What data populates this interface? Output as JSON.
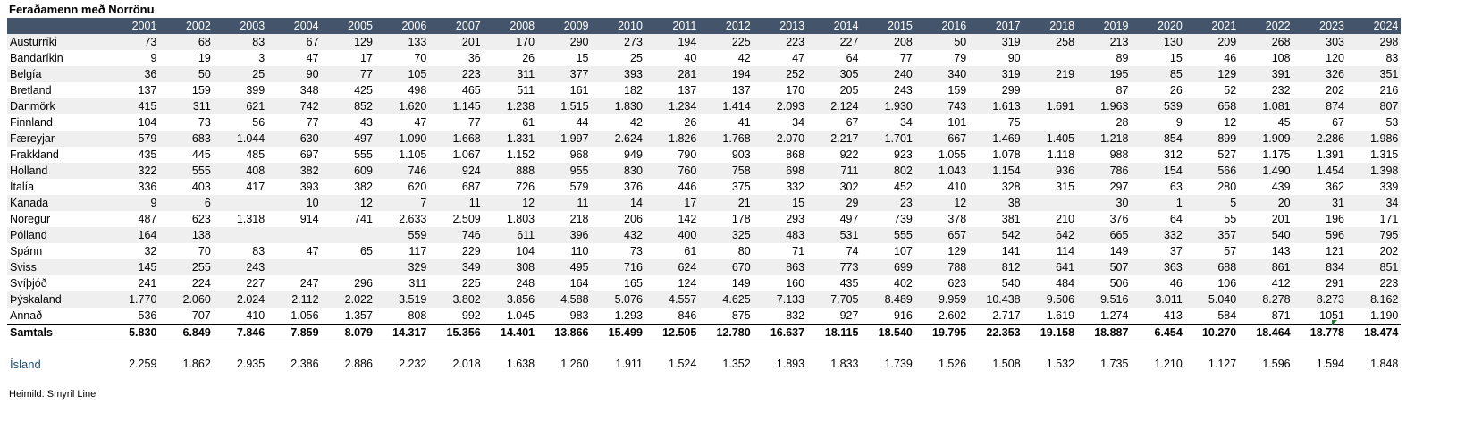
{
  "title": "Feraðamenn með Norrönu",
  "years": [
    "2001",
    "2002",
    "2003",
    "2004",
    "2005",
    "2006",
    "2007",
    "2008",
    "2009",
    "2010",
    "2011",
    "2012",
    "2013",
    "2014",
    "2015",
    "2016",
    "2017",
    "2018",
    "2019",
    "2020",
    "2021",
    "2022",
    "2023",
    "2024"
  ],
  "rows": [
    {
      "label": "Austurríki",
      "values": [
        "73",
        "68",
        "83",
        "67",
        "129",
        "133",
        "201",
        "170",
        "290",
        "273",
        "194",
        "225",
        "223",
        "227",
        "208",
        "50",
        "319",
        "258",
        "213",
        "130",
        "209",
        "268",
        "303",
        "298"
      ]
    },
    {
      "label": "Bandaríkin",
      "values": [
        "9",
        "19",
        "3",
        "47",
        "17",
        "70",
        "36",
        "26",
        "15",
        "25",
        "40",
        "42",
        "47",
        "64",
        "77",
        "79",
        "90",
        "",
        "89",
        "15",
        "46",
        "108",
        "120",
        "83"
      ]
    },
    {
      "label": "Belgía",
      "values": [
        "36",
        "50",
        "25",
        "90",
        "77",
        "105",
        "223",
        "311",
        "377",
        "393",
        "281",
        "194",
        "252",
        "305",
        "240",
        "340",
        "319",
        "219",
        "195",
        "85",
        "129",
        "391",
        "326",
        "351"
      ]
    },
    {
      "label": "Bretland",
      "values": [
        "137",
        "159",
        "399",
        "348",
        "425",
        "498",
        "465",
        "511",
        "161",
        "182",
        "137",
        "137",
        "170",
        "205",
        "243",
        "159",
        "299",
        "",
        "87",
        "26",
        "52",
        "232",
        "202",
        "216"
      ]
    },
    {
      "label": "Danmörk",
      "values": [
        "415",
        "311",
        "621",
        "742",
        "852",
        "1.620",
        "1.145",
        "1.238",
        "1.515",
        "1.830",
        "1.234",
        "1.414",
        "2.093",
        "2.124",
        "1.930",
        "743",
        "1.613",
        "1.691",
        "1.963",
        "539",
        "658",
        "1.081",
        "874",
        "807"
      ]
    },
    {
      "label": "Finnland",
      "values": [
        "104",
        "73",
        "56",
        "77",
        "43",
        "47",
        "77",
        "61",
        "44",
        "42",
        "26",
        "41",
        "34",
        "67",
        "34",
        "101",
        "75",
        "",
        "28",
        "9",
        "12",
        "45",
        "67",
        "53"
      ]
    },
    {
      "label": "Færeyjar",
      "values": [
        "579",
        "683",
        "1.044",
        "630",
        "497",
        "1.090",
        "1.668",
        "1.331",
        "1.997",
        "2.624",
        "1.826",
        "1.768",
        "2.070",
        "2.217",
        "1.701",
        "667",
        "1.469",
        "1.405",
        "1.218",
        "854",
        "899",
        "1.909",
        "2.286",
        "1.986"
      ]
    },
    {
      "label": "Frakkland",
      "values": [
        "435",
        "445",
        "485",
        "697",
        "555",
        "1.105",
        "1.067",
        "1.152",
        "968",
        "949",
        "790",
        "903",
        "868",
        "922",
        "923",
        "1.055",
        "1.078",
        "1.118",
        "988",
        "312",
        "527",
        "1.175",
        "1.391",
        "1.315"
      ]
    },
    {
      "label": "Holland",
      "values": [
        "322",
        "555",
        "408",
        "382",
        "609",
        "746",
        "924",
        "888",
        "955",
        "830",
        "760",
        "758",
        "698",
        "711",
        "802",
        "1.043",
        "1.154",
        "936",
        "786",
        "154",
        "566",
        "1.490",
        "1.454",
        "1.398"
      ]
    },
    {
      "label": "Ítalía",
      "values": [
        "336",
        "403",
        "417",
        "393",
        "382",
        "620",
        "687",
        "726",
        "579",
        "376",
        "446",
        "375",
        "332",
        "302",
        "452",
        "410",
        "328",
        "315",
        "297",
        "63",
        "280",
        "439",
        "362",
        "339"
      ]
    },
    {
      "label": "Kanada",
      "values": [
        "9",
        "6",
        "",
        "10",
        "12",
        "7",
        "11",
        "12",
        "11",
        "14",
        "17",
        "21",
        "15",
        "29",
        "23",
        "12",
        "38",
        "",
        "30",
        "1",
        "5",
        "20",
        "31",
        "34"
      ]
    },
    {
      "label": "Noregur",
      "values": [
        "487",
        "623",
        "1.318",
        "914",
        "741",
        "2.633",
        "2.509",
        "1.803",
        "218",
        "206",
        "142",
        "178",
        "293",
        "497",
        "739",
        "378",
        "381",
        "210",
        "376",
        "64",
        "55",
        "201",
        "196",
        "171"
      ]
    },
    {
      "label": "Pólland",
      "values": [
        "164",
        "138",
        "",
        "",
        "",
        "559",
        "746",
        "611",
        "396",
        "432",
        "400",
        "325",
        "483",
        "531",
        "555",
        "657",
        "542",
        "642",
        "665",
        "332",
        "357",
        "540",
        "596",
        "795"
      ]
    },
    {
      "label": "Spánn",
      "values": [
        "32",
        "70",
        "83",
        "47",
        "65",
        "117",
        "229",
        "104",
        "110",
        "73",
        "61",
        "80",
        "71",
        "74",
        "107",
        "129",
        "141",
        "114",
        "149",
        "37",
        "57",
        "143",
        "121",
        "202"
      ]
    },
    {
      "label": "Sviss",
      "values": [
        "145",
        "255",
        "243",
        "",
        "",
        "329",
        "349",
        "308",
        "495",
        "716",
        "624",
        "670",
        "863",
        "773",
        "699",
        "788",
        "812",
        "641",
        "507",
        "363",
        "688",
        "861",
        "834",
        "851"
      ]
    },
    {
      "label": "Svíþjóð",
      "values": [
        "241",
        "224",
        "227",
        "247",
        "296",
        "311",
        "225",
        "248",
        "164",
        "165",
        "124",
        "149",
        "160",
        "435",
        "402",
        "623",
        "540",
        "484",
        "506",
        "46",
        "106",
        "412",
        "291",
        "223"
      ]
    },
    {
      "label": "Þýskaland",
      "values": [
        "1.770",
        "2.060",
        "2.024",
        "2.112",
        "2.022",
        "3.519",
        "3.802",
        "3.856",
        "4.588",
        "5.076",
        "4.557",
        "4.625",
        "7.133",
        "7.705",
        "8.489",
        "9.959",
        "10.438",
        "9.506",
        "9.516",
        "3.011",
        "5.040",
        "8.278",
        "8.273",
        "8.162"
      ]
    },
    {
      "label": "Annað",
      "values": [
        "536",
        "707",
        "410",
        "1.056",
        "1.357",
        "808",
        "992",
        "1.045",
        "983",
        "1.293",
        "846",
        "875",
        "832",
        "927",
        "916",
        "2.602",
        "2.717",
        "1.619",
        "1.274",
        "413",
        "584",
        "871",
        "1051",
        "1.190"
      ]
    }
  ],
  "total": {
    "label": "Samtals",
    "values": [
      "5.830",
      "6.849",
      "7.846",
      "7.859",
      "8.079",
      "14.317",
      "15.356",
      "14.401",
      "13.866",
      "15.499",
      "12.505",
      "12.780",
      "16.637",
      "18.115",
      "18.540",
      "19.795",
      "22.353",
      "19.158",
      "18.887",
      "6.454",
      "10.270",
      "18.464",
      "18.778",
      "18.474"
    ]
  },
  "iceland": {
    "label": "Ísland",
    "values": [
      "2.259",
      "1.862",
      "2.935",
      "2.386",
      "2.886",
      "2.232",
      "2.018",
      "1.638",
      "1.260",
      "1.911",
      "1.524",
      "1.352",
      "1.893",
      "1.833",
      "1.739",
      "1.526",
      "1.508",
      "1.532",
      "1.735",
      "1.210",
      "1.127",
      "1.596",
      "1.594",
      "1.848"
    ]
  },
  "source": "Heimild: Smyril Line",
  "colors": {
    "header_bg": "#44546a",
    "header_text": "#ffffff",
    "stripe": "#efefef",
    "iceland_label": "#1f4e79"
  }
}
